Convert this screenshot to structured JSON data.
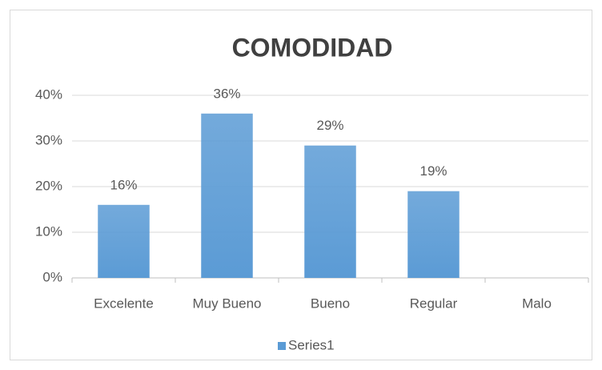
{
  "chart_data": {
    "type": "bar",
    "title": "COMODIDAD",
    "categories": [
      "Excelente",
      "Muy Bueno",
      "Bueno",
      "Regular",
      "Malo"
    ],
    "series": [
      {
        "name": "Series1",
        "color": "#5b9bd5",
        "values": [
          16,
          36,
          29,
          19,
          null
        ],
        "value_labels": [
          "16%",
          "36%",
          "29%",
          "19%",
          null
        ]
      }
    ],
    "ylim": [
      0,
      40
    ],
    "yticks": [
      {
        "value": 0,
        "label": "0%"
      },
      {
        "value": 10,
        "label": "10%"
      },
      {
        "value": 20,
        "label": "20%"
      },
      {
        "value": 30,
        "label": "30%"
      },
      {
        "value": 40,
        "label": "40%"
      }
    ],
    "grid": true,
    "legend": "bottom"
  }
}
